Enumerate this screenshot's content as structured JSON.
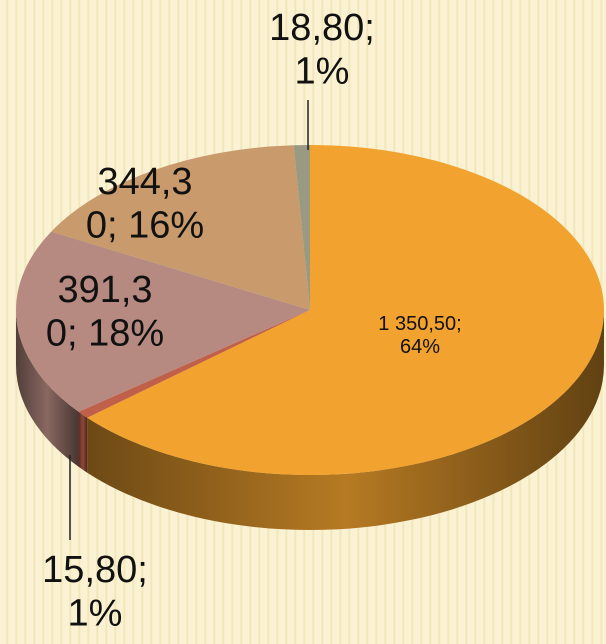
{
  "chart_data": {
    "type": "pie3d",
    "values": [
      1350.5,
      15.8,
      391.3,
      344.3,
      18.8
    ],
    "value_labels": [
      "1 350,50; 64%",
      "15,80; 1%",
      "391,30; 18%",
      "344,30; 16%",
      "18,80; 1%"
    ],
    "colors": [
      "#f2a22e",
      "#c0604a",
      "#b68a80",
      "#c89a6c",
      "#9a9a82"
    ]
  }
}
